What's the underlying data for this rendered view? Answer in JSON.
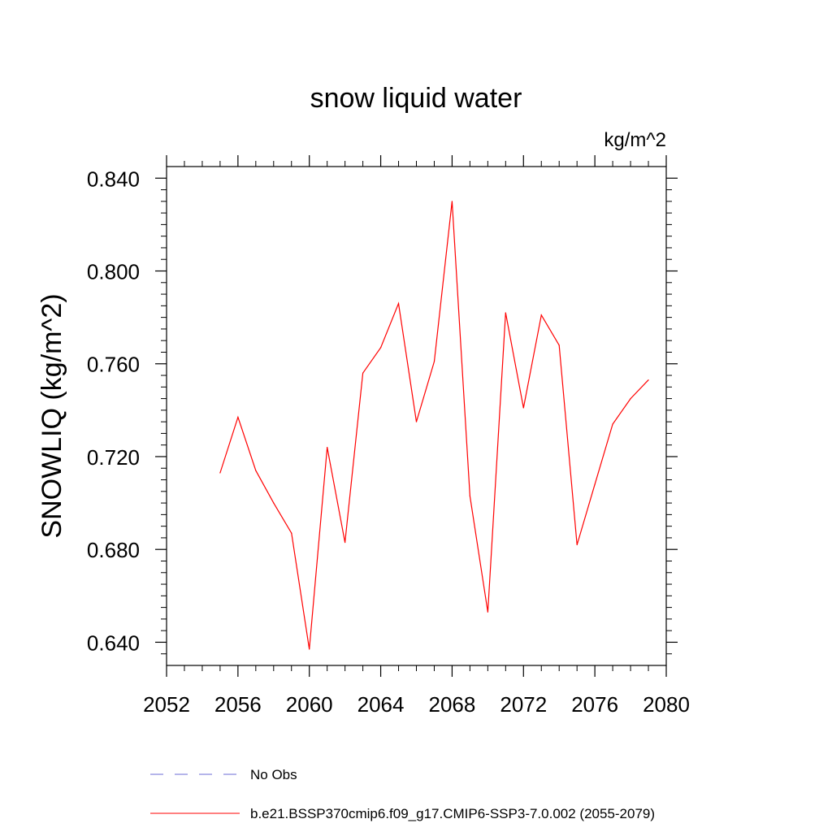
{
  "chart_data": {
    "type": "line",
    "title": "snow liquid water",
    "units_label": "kg/m^2",
    "ylabel": "SNOWLIQ  (kg/m^2)",
    "xlabel": "",
    "xlim": [
      2052,
      2080
    ],
    "ylim": [
      0.63,
      0.845
    ],
    "x_ticks": [
      "2052",
      "2056",
      "2060",
      "2064",
      "2068",
      "2072",
      "2076",
      "2080"
    ],
    "y_ticks": [
      "0.640",
      "0.680",
      "0.720",
      "0.760",
      "0.800",
      "0.840"
    ],
    "grid": false,
    "legend_position": "bottom",
    "series": [
      {
        "name": "b.e21.BSSP370cmip6.f09_g17.CMIP6-SSP3-7.0.002 (2055-2079)",
        "color": "#ff0000",
        "style": "solid",
        "x": [
          2055,
          2056,
          2057,
          2058,
          2059,
          2060,
          2061,
          2062,
          2063,
          2064,
          2065,
          2066,
          2067,
          2068,
          2069,
          2070,
          2071,
          2072,
          2073,
          2074,
          2075,
          2076,
          2077,
          2078,
          2079
        ],
        "values": [
          0.713,
          0.737,
          0.714,
          0.7,
          0.687,
          0.637,
          0.724,
          0.683,
          0.756,
          0.767,
          0.786,
          0.735,
          0.761,
          0.83,
          0.703,
          0.653,
          0.782,
          0.741,
          0.781,
          0.768,
          0.682,
          0.708,
          0.734,
          0.745,
          0.753
        ]
      }
    ],
    "legend": [
      {
        "label": "No Obs",
        "color": "#6b6bd6",
        "style": "dashed"
      },
      {
        "label": "b.e21.BSSP370cmip6.f09_g17.CMIP6-SSP3-7.0.002 (2055-2079)",
        "color": "#ff0000",
        "style": "solid"
      }
    ]
  }
}
